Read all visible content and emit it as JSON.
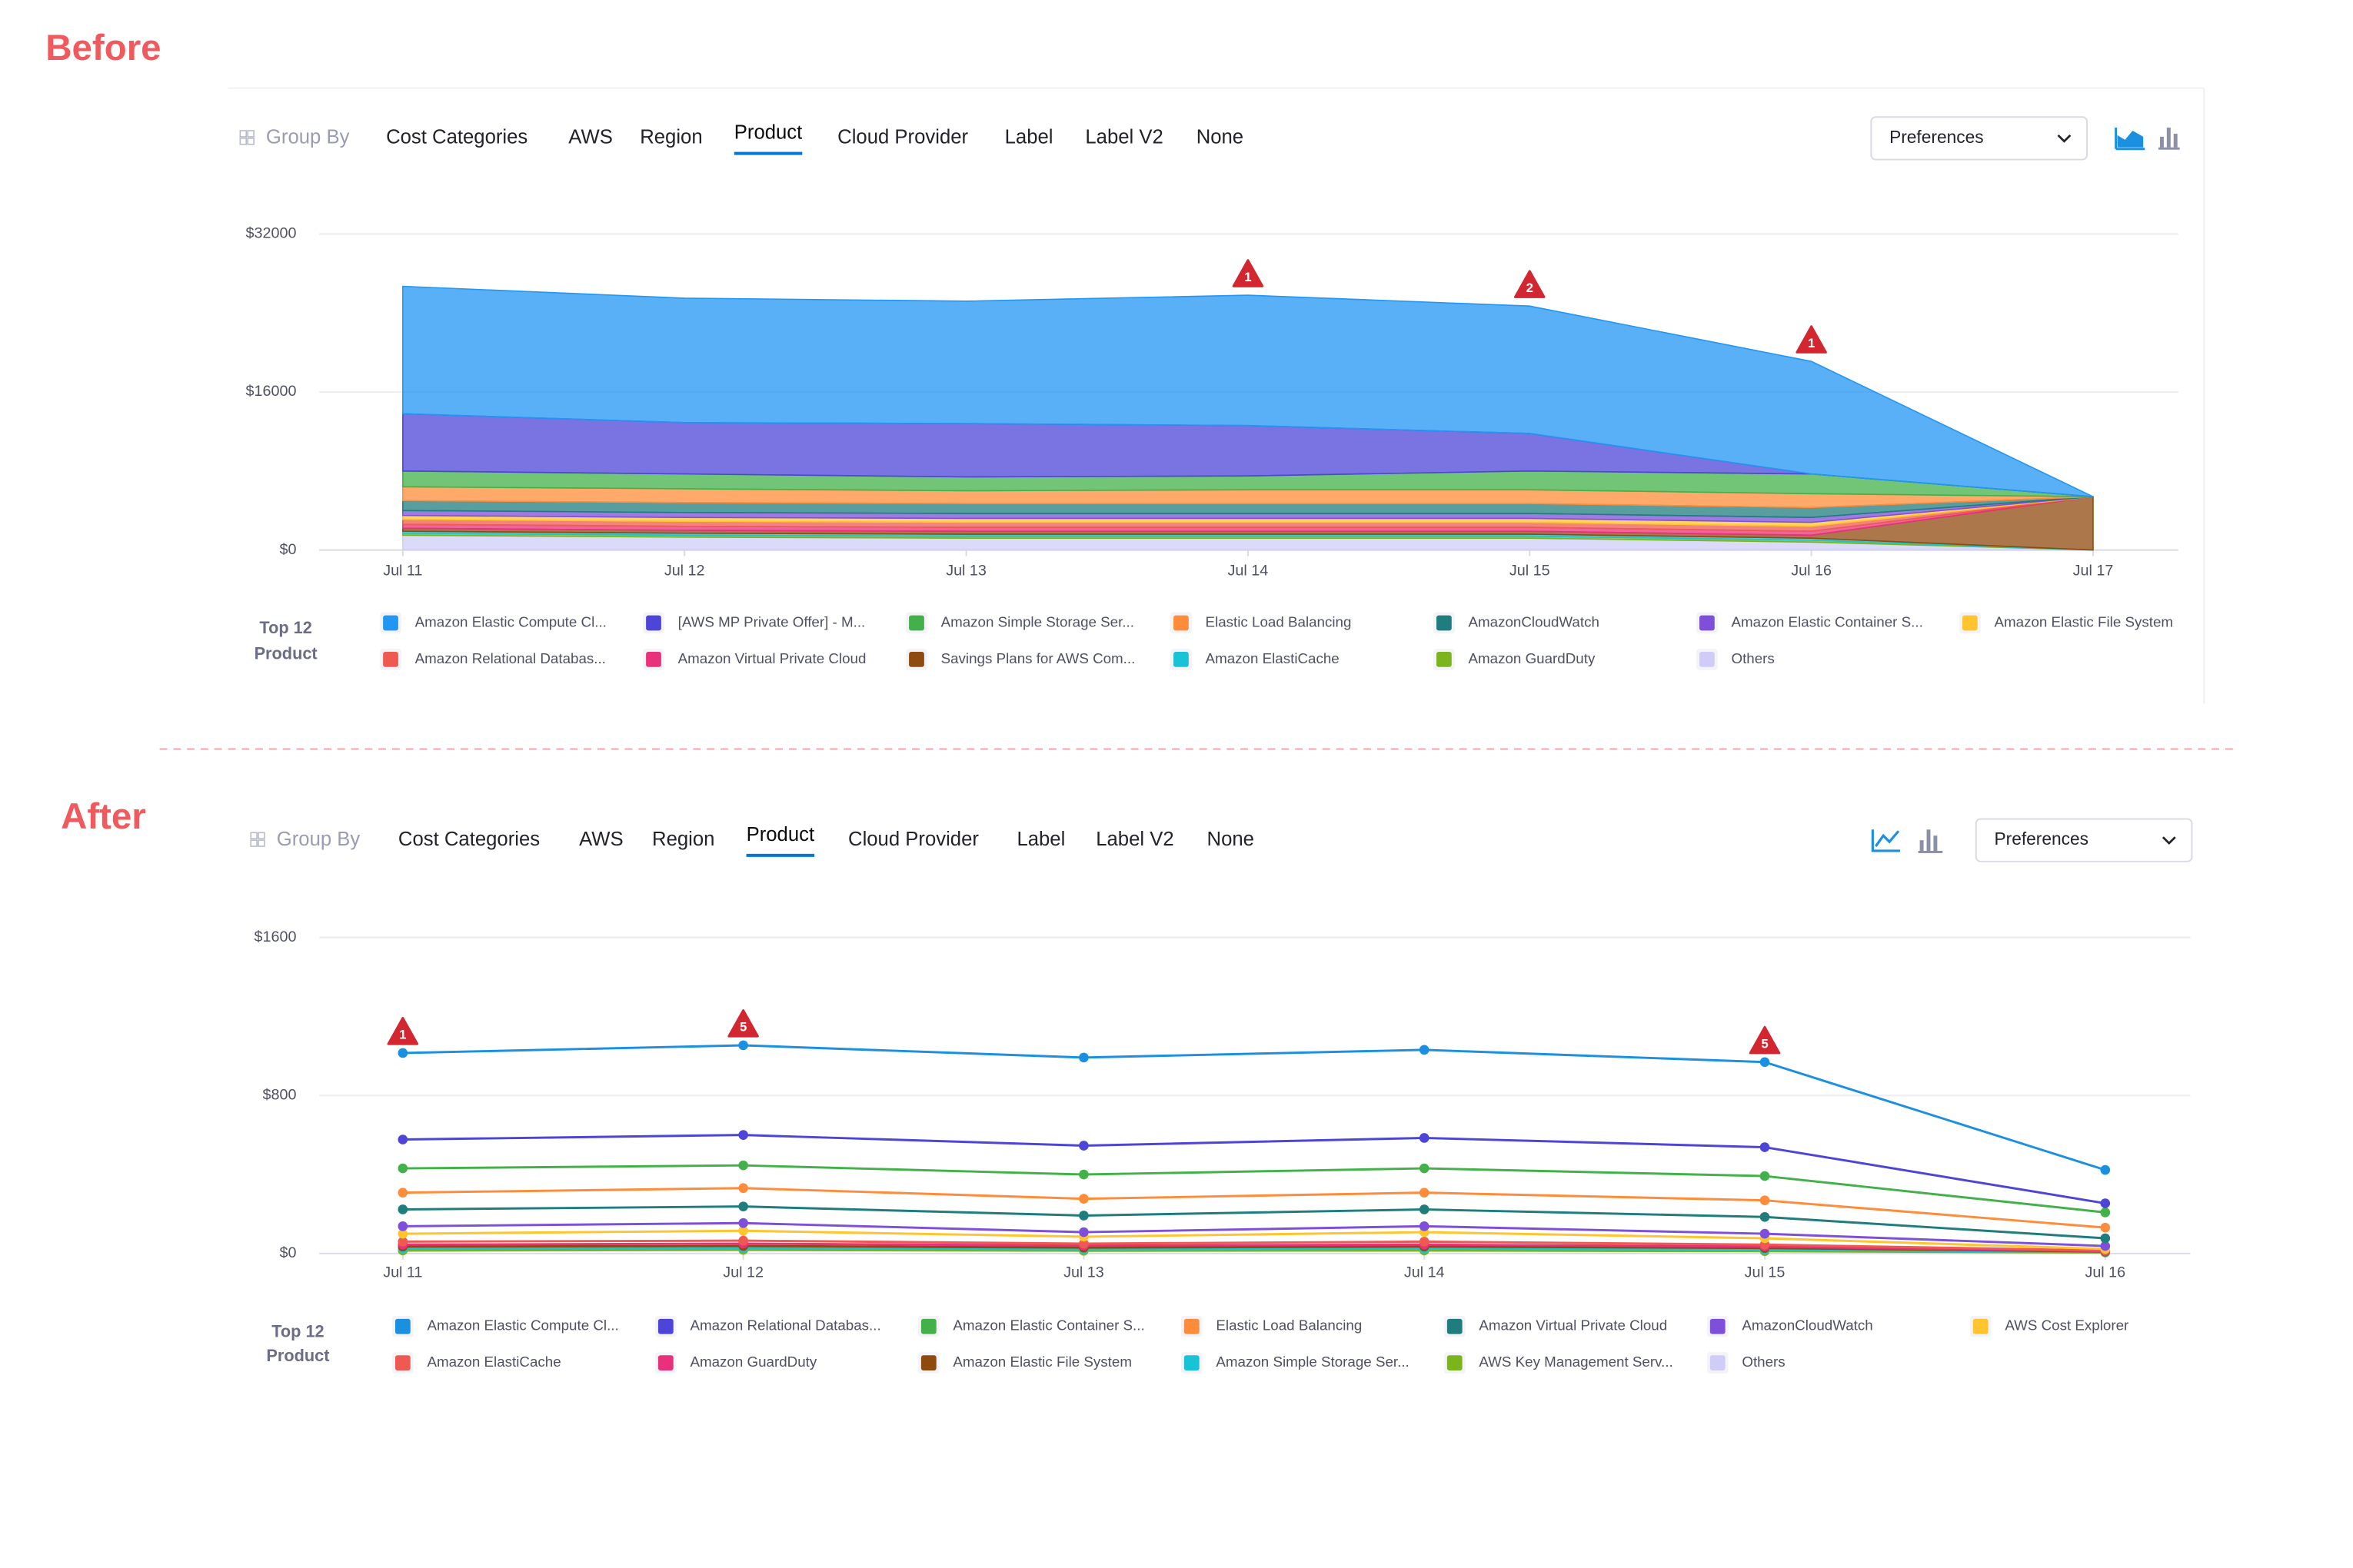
{
  "panels": [
    {
      "heading": "Before",
      "group_by_label": "Group By",
      "group_by_options": [
        "Cost Categories",
        "AWS",
        "Region",
        "Product",
        "Cloud Provider",
        "Label",
        "Label V2",
        "None"
      ],
      "selected_option": 3,
      "preferences": "Preferences"
    },
    {
      "heading": "After",
      "group_by_label": "Group By",
      "group_by_options": [
        "Cost Categories",
        "AWS",
        "Region",
        "Product",
        "Cloud Provider",
        "Label",
        "Label V2",
        "None"
      ],
      "selected_option": 3,
      "preferences": "Preferences"
    }
  ],
  "chart_data": [
    {
      "type": "area",
      "stacked": true,
      "categories": [
        "Jul 11",
        "Jul 12",
        "Jul 13",
        "Jul 14",
        "Jul 15",
        "Jul 16",
        "Jul 17"
      ],
      "ylim": [
        0,
        32000
      ],
      "yticks": [
        {
          "value": 0,
          "label": "$0"
        },
        {
          "value": 16000,
          "label": "$16000"
        },
        {
          "value": 32000,
          "label": "$32000"
        }
      ],
      "grid": true,
      "legend_title": [
        "Top 12",
        "Product"
      ],
      "series": [
        {
          "name": "Amazon Elastic Compute Cl...",
          "color": "#2196f3",
          "values": [
            12900,
            12600,
            12400,
            13200,
            12900,
            11400,
            0
          ]
        },
        {
          "name": "[AWS MP Private Offer] - M...",
          "color": "#4c45d8",
          "values": [
            5800,
            5200,
            5400,
            5100,
            3800,
            0,
            0
          ]
        },
        {
          "name": "Amazon Simple Storage Ser...",
          "color": "#43b14a",
          "values": [
            1600,
            1500,
            1400,
            1400,
            1900,
            2000,
            0
          ]
        },
        {
          "name": "Elastic Load Balancing",
          "color": "#ff8c3a",
          "values": [
            1400,
            1400,
            1300,
            1400,
            1400,
            1400,
            0
          ]
        },
        {
          "name": "AmazonCloudWatch",
          "color": "#207d7d",
          "values": [
            1000,
            1000,
            1000,
            1000,
            1000,
            1000,
            0
          ]
        },
        {
          "name": "Amazon Elastic Container S...",
          "color": "#7e4fd9",
          "values": [
            500,
            500,
            500,
            500,
            500,
            500,
            0
          ]
        },
        {
          "name": "Amazon Elastic File System",
          "color": "#ffc42e",
          "values": [
            400,
            400,
            400,
            400,
            400,
            400,
            0
          ]
        },
        {
          "name": "Amazon Relational Databas...",
          "color": "#ee5a52",
          "values": [
            500,
            500,
            500,
            500,
            500,
            500,
            0
          ]
        },
        {
          "name": "Amazon Virtual Private Cloud",
          "color": "#e8317a",
          "values": [
            400,
            400,
            400,
            400,
            400,
            400,
            0
          ]
        },
        {
          "name": "Savings Plans for AWS Com...",
          "color": "#8f4a0f",
          "values": [
            300,
            300,
            300,
            300,
            300,
            300,
            5400
          ]
        },
        {
          "name": "Amazon ElastiCache",
          "color": "#19c3d6",
          "values": [
            200,
            200,
            200,
            200,
            200,
            200,
            0
          ]
        },
        {
          "name": "Amazon GuardDuty",
          "color": "#7ab51d",
          "values": [
            200,
            200,
            200,
            200,
            200,
            200,
            0
          ]
        },
        {
          "name": "Others",
          "color": "#cfcdf7",
          "values": [
            1500,
            1300,
            1200,
            1200,
            1200,
            800,
            0
          ]
        }
      ],
      "annotations": [
        {
          "x": "Jul 14",
          "count": 1
        },
        {
          "x": "Jul 15",
          "count": 2
        },
        {
          "x": "Jul 16",
          "count": 1
        }
      ]
    },
    {
      "type": "line",
      "categories": [
        "Jul 11",
        "Jul 12",
        "Jul 13",
        "Jul 14",
        "Jul 15",
        "Jul 16"
      ],
      "ylim": [
        0,
        1600
      ],
      "yticks": [
        {
          "value": 0,
          "label": "$0"
        },
        {
          "value": 800,
          "label": "$800"
        },
        {
          "value": 1600,
          "label": "$1600"
        }
      ],
      "grid": true,
      "legend_title": [
        "Top 12",
        "Product"
      ],
      "series": [
        {
          "name": "Amazon Elastic Compute Cl...",
          "color": "#1b8fe0",
          "values": [
            1015,
            1054,
            992,
            1031,
            969,
            423
          ]
        },
        {
          "name": "Amazon Relational Databas...",
          "color": "#4c45d8",
          "values": [
            577,
            600,
            546,
            585,
            538,
            254
          ]
        },
        {
          "name": "Amazon Elastic Container S...",
          "color": "#43b14a",
          "values": [
            431,
            446,
            400,
            431,
            392,
            208
          ]
        },
        {
          "name": "Elastic Load Balancing",
          "color": "#ff8c3a",
          "values": [
            308,
            331,
            277,
            308,
            269,
            131
          ]
        },
        {
          "name": "Amazon Virtual Private Cloud",
          "color": "#207d7d",
          "values": [
            223,
            238,
            192,
            223,
            185,
            77
          ]
        },
        {
          "name": "AmazonCloudWatch",
          "color": "#7e4fd9",
          "values": [
            138,
            154,
            108,
            138,
            100,
            38
          ]
        },
        {
          "name": "AWS Cost Explorer",
          "color": "#ffc42e",
          "values": [
            100,
            115,
            85,
            108,
            77,
            23
          ]
        },
        {
          "name": "Amazon ElastiCache",
          "color": "#ee5a52",
          "values": [
            60,
            65,
            50,
            60,
            45,
            15
          ]
        },
        {
          "name": "Amazon GuardDuty",
          "color": "#e8317a",
          "values": [
            45,
            50,
            40,
            45,
            35,
            12
          ]
        },
        {
          "name": "Amazon Elastic File System",
          "color": "#8f4a0f",
          "values": [
            35,
            38,
            30,
            35,
            28,
            10
          ]
        },
        {
          "name": "Amazon Simple Storage Ser...",
          "color": "#19c3d6",
          "values": [
            25,
            28,
            22,
            25,
            20,
            8
          ]
        },
        {
          "name": "AWS Key Management Serv...",
          "color": "#7ab51d",
          "values": [
            15,
            18,
            14,
            15,
            12,
            5
          ]
        },
        {
          "name": "Others",
          "color": "#cfcdf7",
          "values": [
            30,
            32,
            28,
            30,
            26,
            10
          ]
        }
      ],
      "annotations": [
        {
          "x": "Jul 11",
          "count": 1
        },
        {
          "x": "Jul 12",
          "count": 5
        },
        {
          "x": "Jul 15",
          "count": 5
        }
      ]
    }
  ]
}
